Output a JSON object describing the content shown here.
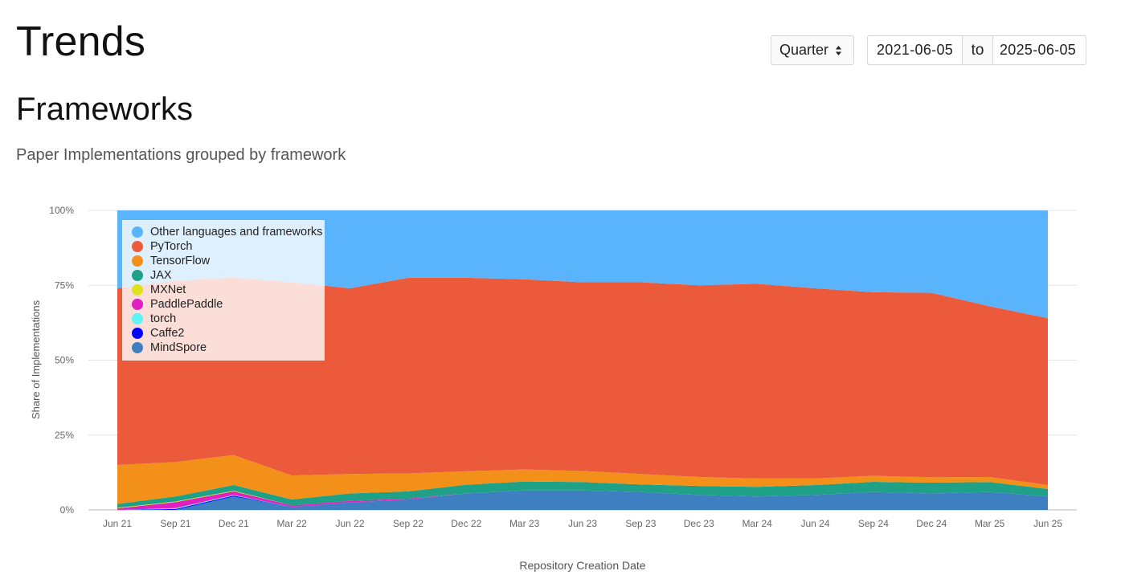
{
  "header": {
    "title": "Trends"
  },
  "controls": {
    "period": "Quarter",
    "date_from": "2021-06-05",
    "date_separator": "to",
    "date_to": "2025-06-05"
  },
  "section": {
    "title": "Frameworks",
    "subtitle": "Paper Implementations grouped by framework"
  },
  "chart_data": {
    "type": "area",
    "stacked": true,
    "normalized": true,
    "categories": [
      "Jun 21",
      "Sep 21",
      "Dec 21",
      "Mar 22",
      "Jun 22",
      "Sep 22",
      "Dec 22",
      "Mar 23",
      "Jun 23",
      "Sep 23",
      "Dec 23",
      "Mar 24",
      "Jun 24",
      "Sep 24",
      "Dec 24",
      "Mar 25",
      "Jun 25"
    ],
    "xlabel": "Repository Creation Date",
    "ylabel": "Share of Implementations",
    "ylim": [
      0,
      100
    ],
    "yticks": [
      "0%",
      "25%",
      "50%",
      "75%",
      "100%"
    ],
    "grid": true,
    "legend_position": "top-left",
    "series": [
      {
        "name": "MindSpore",
        "color": "#3d7fc1",
        "values": [
          0,
          0,
          4.5,
          1,
          2.5,
          3.5,
          5.5,
          6.5,
          6.5,
          6,
          5,
          4.5,
          5,
          6,
          5.5,
          6,
          4.5
        ]
      },
      {
        "name": "Caffe2",
        "color": "#0000ff",
        "values": [
          0,
          0.3,
          0.3,
          0,
          0,
          0,
          0,
          0,
          0,
          0,
          0,
          0,
          0,
          0,
          0,
          0,
          0
        ]
      },
      {
        "name": "torch",
        "color": "#5ff5f5",
        "values": [
          0,
          0.3,
          0.2,
          0,
          0,
          0,
          0,
          0,
          0,
          0,
          0,
          0,
          0,
          0,
          0,
          0,
          0
        ]
      },
      {
        "name": "PaddlePaddle",
        "color": "#e020c0",
        "values": [
          0.5,
          2,
          1.2,
          0.5,
          0.5,
          0.3,
          0,
          0,
          0,
          0,
          0,
          0,
          0,
          0,
          0,
          0,
          0
        ]
      },
      {
        "name": "MXNet",
        "color": "#dfe31f",
        "values": [
          0.2,
          0.2,
          0.2,
          0,
          0,
          0,
          0,
          0,
          0,
          0,
          0,
          0,
          0,
          0,
          0,
          0,
          0
        ]
      },
      {
        "name": "JAX",
        "color": "#1fa187",
        "values": [
          1.3,
          1.7,
          1.9,
          2,
          2.5,
          2.4,
          2.9,
          3,
          2.8,
          2.5,
          3,
          3.2,
          3.3,
          3.4,
          3.6,
          3.3,
          2.5
        ]
      },
      {
        "name": "TensorFlow",
        "color": "#f39019",
        "values": [
          13,
          11.5,
          10,
          8,
          6.5,
          6,
          4.5,
          4,
          3.7,
          3.5,
          3,
          2.8,
          2.2,
          2,
          1.8,
          1.7,
          1.3
        ]
      },
      {
        "name": "PyTorch",
        "color": "#ec5a3c",
        "values": [
          59,
          60.5,
          59.2,
          64.5,
          62,
          65.3,
          64.6,
          63.5,
          63,
          64,
          64,
          65,
          63.5,
          61.3,
          61.6,
          57,
          55.7
        ]
      },
      {
        "name": "Other languages and frameworks",
        "color": "#5ab4fb",
        "values": [
          26,
          23.5,
          22.5,
          24,
          26,
          22.5,
          22.5,
          23,
          24,
          24,
          25,
          24.5,
          26,
          27.3,
          27.5,
          32,
          36
        ]
      }
    ],
    "legend_order": [
      "Other languages and frameworks",
      "PyTorch",
      "TensorFlow",
      "JAX",
      "MXNet",
      "PaddlePaddle",
      "torch",
      "Caffe2",
      "MindSpore"
    ]
  }
}
